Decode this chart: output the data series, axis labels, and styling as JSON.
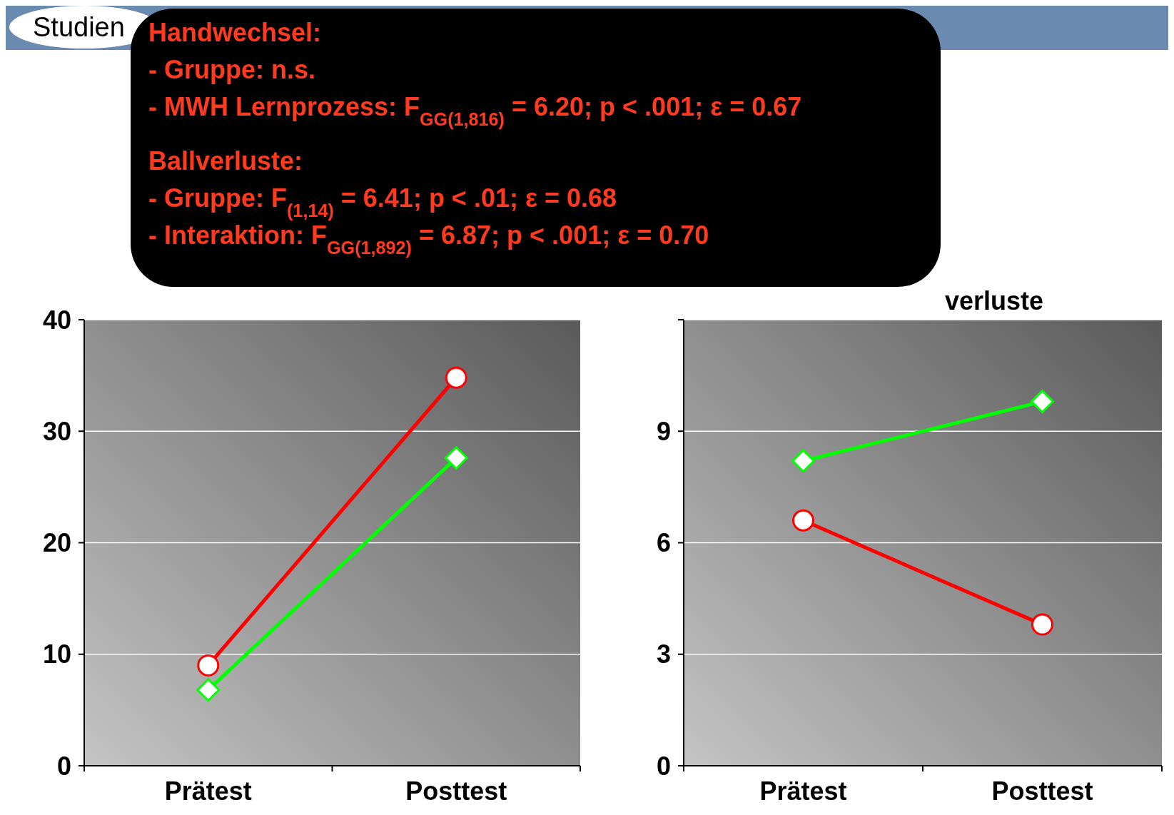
{
  "chart_data": [
    {
      "type": "line",
      "categories": [
        "Prätest",
        "Posttest"
      ],
      "ylim": [
        0,
        40
      ],
      "yticks": [
        0,
        10,
        20,
        30,
        40
      ],
      "grid": "y",
      "series": [
        {
          "color": "#ff0000",
          "marker": "circle",
          "values": [
            9,
            34.8
          ]
        },
        {
          "color": "#00ff00",
          "marker": "diamond",
          "values": [
            6.8,
            27.6
          ]
        }
      ],
      "annotations": [
        "Studien",
        "Handwechsel:",
        "- Gruppe: n.s.",
        "- MWH Lernprozess: F$_{GG(1,816)}$ = 6.20; p < .001; ε = 0.67",
        "Ballverluste:",
        "- Gruppe: F$_{(1,14)}$ = 6.41; p < .01; ε = 0.68",
        "- Interaktion: F$_{GG(1,892)}$ = 6.87; p < .001; ε = 0.70"
      ]
    },
    {
      "type": "line",
      "title": "verluste",
      "categories": [
        "Prätest",
        "Posttest"
      ],
      "ylim": [
        0,
        12
      ],
      "yticks": [
        0,
        3,
        6,
        9,
        {
          "value": 12,
          "label": null
        }
      ],
      "grid": "y",
      "series": [
        {
          "color": "#00ff00",
          "marker": "diamond",
          "values": [
            8.2,
            9.8
          ]
        },
        {
          "color": "#ff0000",
          "marker": "circle",
          "values": [
            6.6,
            3.8
          ]
        }
      ]
    }
  ]
}
